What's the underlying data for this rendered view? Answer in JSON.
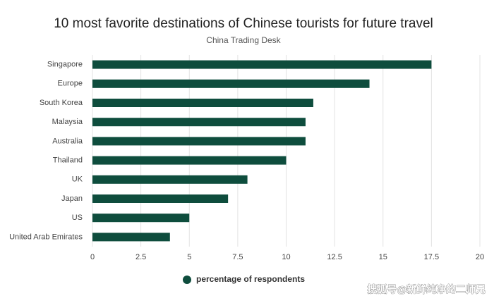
{
  "chart_data": {
    "type": "bar",
    "orientation": "horizontal",
    "title": "10 most favorite destinations of Chinese tourists for future travel",
    "subtitle": "China Trading Desk",
    "categories": [
      "Singapore",
      "Europe",
      "South Korea",
      "Malaysia",
      "Australia",
      "Thailand",
      "UK",
      "Japan",
      "US",
      "United Arab Emirates"
    ],
    "series": [
      {
        "name": "percentage of respondents",
        "color": "#0e4d3d",
        "values": [
          17.5,
          14.3,
          11.4,
          11,
          11,
          10,
          8,
          7,
          5,
          4
        ]
      }
    ],
    "xlim": [
      0,
      20
    ],
    "xticks": [
      0,
      2.5,
      5,
      7.5,
      10,
      12.5,
      15,
      17.5,
      20
    ],
    "grid": true,
    "legend": "bottom"
  },
  "watermark": "搜狐号@新鲜纯净的二师兄"
}
